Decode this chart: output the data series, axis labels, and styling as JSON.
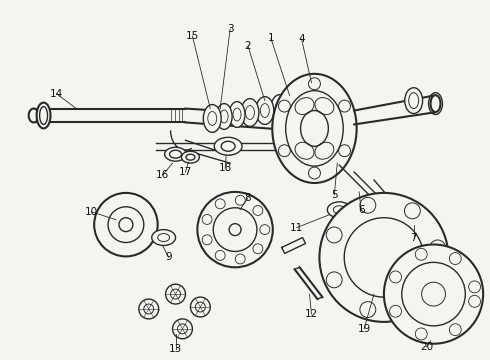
{
  "background_color": "#f5f5f0",
  "line_color": "#2a2a2a",
  "label_color": "#111111",
  "figsize": [
    4.9,
    3.6
  ],
  "dpi": 100,
  "xlim": [
    0,
    490
  ],
  "ylim": [
    0,
    360
  ]
}
